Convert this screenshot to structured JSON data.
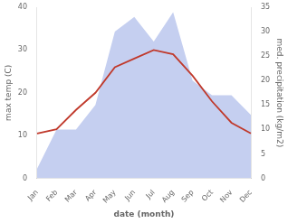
{
  "chart_data": {
    "type": "line",
    "categories": [
      "Jan",
      "Feb",
      "Mar",
      "Apr",
      "May",
      "Jun",
      "Jul",
      "Aug",
      "Sep",
      "Oct",
      "Nov",
      "Dec"
    ],
    "series": [
      {
        "type": "area",
        "axis": "y2",
        "color": "#c5cff0",
        "values": [
          2,
          10,
          10,
          15,
          30,
          33,
          28,
          34,
          20,
          17,
          17,
          13
        ]
      },
      {
        "type": "line",
        "axis": "y",
        "color": "#c0392b",
        "values": [
          10.5,
          11.5,
          16.0,
          20.0,
          26.0,
          28.0,
          30.0,
          29.0,
          24.0,
          18.0,
          13.0,
          10.5
        ]
      }
    ],
    "xlabel": "date (month)",
    "ylabel": "max temp (C)",
    "y2label": "med. precipitation (kg/m2)",
    "ylim": [
      0,
      40
    ],
    "yticks": [
      0,
      10,
      20,
      30,
      40
    ],
    "y2lim": [
      0,
      35
    ],
    "y2ticks": [
      0,
      5,
      10,
      15,
      20,
      25,
      30,
      35
    ],
    "grid": false
  }
}
